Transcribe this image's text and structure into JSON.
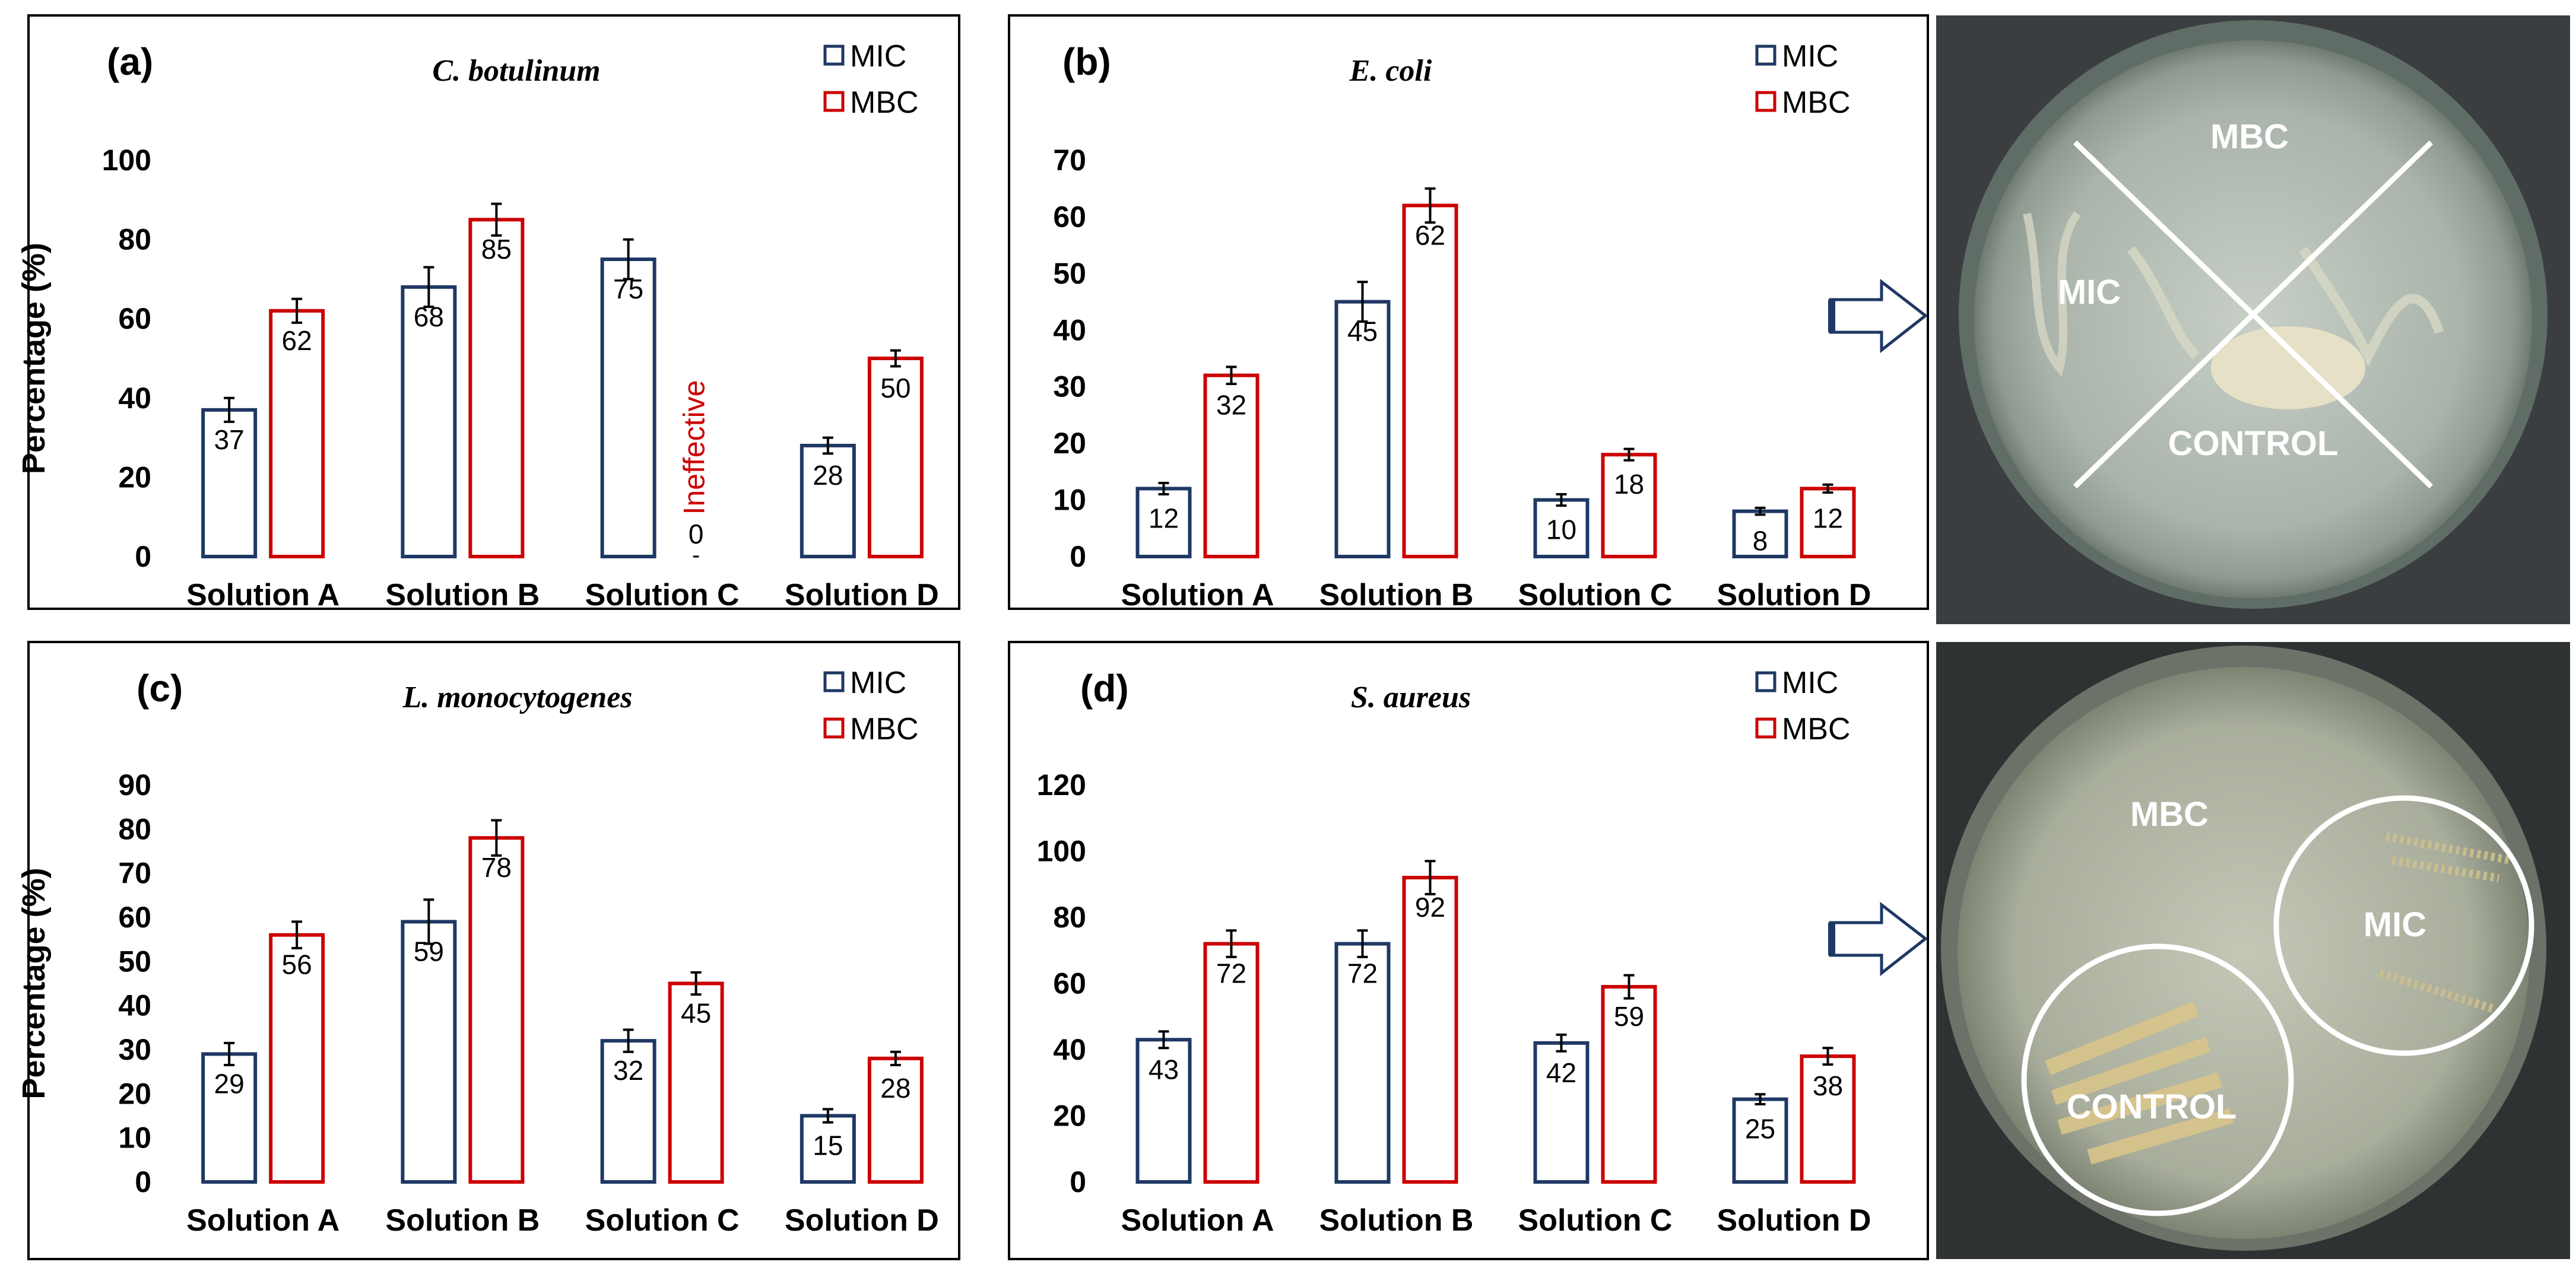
{
  "colors": {
    "mic": "#1f3864",
    "mbc": "#cc0000",
    "note": "#cc0000",
    "arrow": "#1f3864"
  },
  "chart_data": [
    {
      "type": "bar",
      "panel_label": "(a)",
      "title": "C. botulinum",
      "ylabel": "Percentage  (%)",
      "categories": [
        "Solution A",
        "Solution B",
        "Solution C",
        "Solution D"
      ],
      "ylim": [
        0,
        100
      ],
      "yticks": [
        0,
        20,
        40,
        60,
        80,
        100
      ],
      "series": [
        {
          "name": "MIC",
          "values": [
            37,
            68,
            75,
            28
          ],
          "errors": [
            3,
            5,
            5,
            2
          ]
        },
        {
          "name": "MBC",
          "values": [
            62,
            85,
            0,
            50
          ],
          "errors": [
            3,
            4,
            0,
            2
          ]
        }
      ],
      "annotations": [
        {
          "category": "Solution C",
          "series": "MBC",
          "text": "Ineffective"
        }
      ]
    },
    {
      "type": "bar",
      "panel_label": "(b)",
      "title": "E. coli",
      "ylabel": "",
      "categories": [
        "Solution A",
        "Solution B",
        "Solution C",
        "Solution D"
      ],
      "ylim": [
        0,
        70
      ],
      "yticks": [
        0,
        10,
        20,
        30,
        40,
        50,
        60,
        70
      ],
      "series": [
        {
          "name": "MIC",
          "values": [
            12,
            45,
            10,
            8
          ],
          "errors": [
            1,
            3.5,
            1,
            0.6
          ]
        },
        {
          "name": "MBC",
          "values": [
            32,
            62,
            18,
            12
          ],
          "errors": [
            1.5,
            3,
            1,
            0.7
          ]
        }
      ]
    },
    {
      "type": "bar",
      "panel_label": "(c)",
      "title": "L. monocytogenes",
      "ylabel": "Percentage  (%)",
      "categories": [
        "Solution A",
        "Solution B",
        "Solution C",
        "Solution D"
      ],
      "ylim": [
        0,
        90
      ],
      "yticks": [
        0,
        10,
        20,
        30,
        40,
        50,
        60,
        70,
        80,
        90
      ],
      "series": [
        {
          "name": "MIC",
          "values": [
            29,
            59,
            32,
            15
          ],
          "errors": [
            2.5,
            5,
            2.5,
            1.5
          ]
        },
        {
          "name": "MBC",
          "values": [
            56,
            78,
            45,
            28
          ],
          "errors": [
            3,
            4,
            2.5,
            1.5
          ]
        }
      ]
    },
    {
      "type": "bar",
      "panel_label": "(d)",
      "title": "S. aureus",
      "ylabel": "",
      "categories": [
        "Solution A",
        "Solution B",
        "Solution C",
        "Solution D"
      ],
      "ylim": [
        0,
        120
      ],
      "yticks": [
        0,
        20,
        40,
        60,
        80,
        100,
        120
      ],
      "series": [
        {
          "name": "MIC",
          "values": [
            43,
            72,
            42,
            25
          ],
          "errors": [
            2.5,
            4,
            2.5,
            1.5
          ]
        },
        {
          "name": "MBC",
          "values": [
            72,
            92,
            59,
            38
          ],
          "errors": [
            4,
            5,
            3.5,
            2.5
          ]
        }
      ]
    }
  ],
  "photos": [
    {
      "labels": [
        "MBC",
        "MIC",
        "CONTROL"
      ]
    },
    {
      "labels": [
        "MBC",
        "MIC",
        "CONTROL"
      ]
    }
  ]
}
